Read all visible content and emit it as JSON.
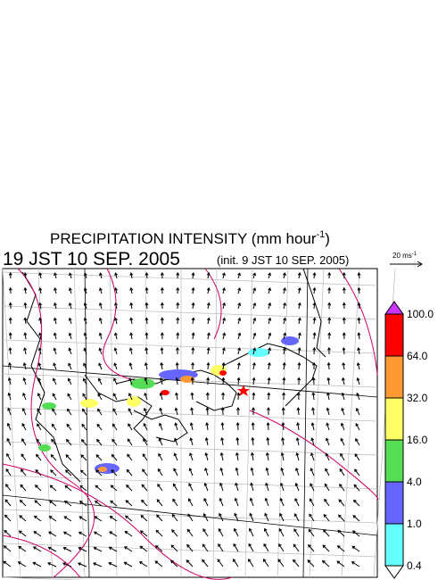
{
  "header": {
    "title": "PRECIPITATION INTENSITY (mm hour",
    "title_sup": "-1",
    "title_close": ")",
    "valid_time": "19 JST 10 SEP. 2005",
    "init_time": "(init. 9 JST 10 SEP. 2005)"
  },
  "vector_scale": {
    "label": "20 ms",
    "label_sup": "-1"
  },
  "colorbar": {
    "levels": [
      "100.0",
      "64.0",
      "32.0",
      "16.0",
      "4.0",
      "1.0",
      "0.4"
    ],
    "colors": [
      "#ff0000",
      "#ff9933",
      "#ffff66",
      "#55dd55",
      "#6666ff",
      "#66ffff"
    ],
    "over_color": "#cc33ff",
    "under_color": "#ffffff"
  }
}
